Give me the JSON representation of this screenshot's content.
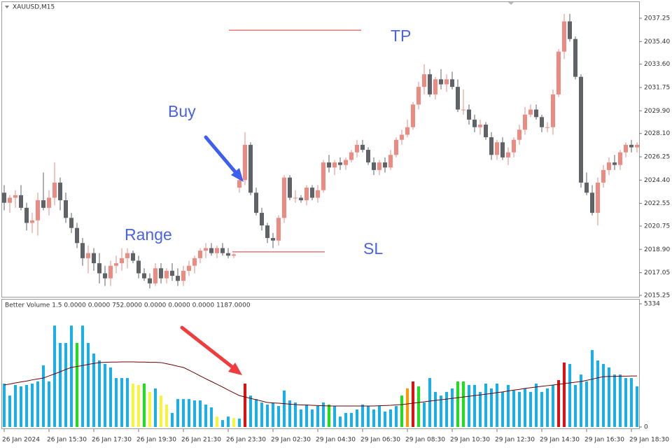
{
  "chart_data": [
    {
      "type": "candlestick",
      "title": "XAUUSD,M15",
      "ylim": [
        2015.08,
        2038.53
      ],
      "yticks": [
        2037.25,
        {
          "value": 2035.4,
          "label": "2035.40"
        },
        {
          "value": 2033.6,
          "label": "2033.60"
        },
        2031.75,
        {
          "value": 2029.9,
          "label": "2029.90"
        },
        {
          "value": 2028.1,
          "label": "2028.10"
        },
        2026.25,
        {
          "value": 2024.4,
          "label": "2024.40"
        },
        2022.55,
        2020.75,
        {
          "value": 2018.9,
          "label": "2018.90"
        },
        2017.05,
        2015.25
      ],
      "up_color": "#ee8a80",
      "down_color": "#5f6266",
      "open": [
        2023.4,
        2022.6,
        2023.0,
        2023.2,
        2022.2,
        2021.0,
        2021.2,
        2022.8,
        2022.2,
        2023.0,
        2024.2,
        2022.8,
        2021.4,
        2020.6,
        2019.4,
        2018.2,
        2018.6,
        2017.8,
        2017.0,
        2016.6,
        2017.6,
        2017.8,
        2018.2,
        2018.6,
        2018.0,
        2017.0,
        2016.6,
        2016.2,
        2017.4,
        2016.6,
        2017.2,
        2016.8,
        2016.4,
        2017.2,
        2017.6,
        2018.2,
        2018.8,
        2019.0,
        2018.6,
        2019.0,
        2018.6,
        2018.4,
        2023.8,
        2024.4,
        2027.2,
        2023.4,
        2021.8,
        2020.8,
        2019.8,
        2019.6,
        2021.4,
        2024.6,
        2023.0,
        2023.0,
        2022.8,
        2023.8,
        2023.0,
        2023.6,
        2025.8,
        2025.4,
        2025.8,
        2025.6,
        2026.0,
        2026.6,
        2027.2,
        2026.8,
        2025.8,
        2025.2,
        2025.8,
        2025.4,
        2026.4,
        2027.6,
        2028.0,
        2028.6,
        2030.4,
        2031.8,
        2032.8,
        2031.2,
        2032.4,
        2032.0,
        2032.4,
        2031.8,
        2030.0,
        2030.0,
        2029.2,
        2028.6,
        2028.8,
        2027.8,
        2026.4,
        2027.4,
        2026.2,
        2026.6,
        2027.6,
        2028.4,
        2029.6,
        2030.0,
        2029.4,
        2028.6,
        2028.6,
        2031.2,
        2034.6,
        2037.0,
        2035.6,
        2032.6,
        2024.2,
        2023.4,
        2021.8,
        2024.2,
        2025.2,
        2025.8,
        2025.6,
        2026.6,
        2027.2,
        2027.0
      ],
      "high": [
        2024.0,
        2023.2,
        2023.6,
        2024.0,
        2022.6,
        2021.8,
        2023.4,
        2025.0,
        2023.6,
        2025.8,
        2024.6,
        2023.4,
        2021.8,
        2021.0,
        2019.8,
        2019.2,
        2019.0,
        2018.6,
        2017.6,
        2018.0,
        2018.4,
        2019.0,
        2019.0,
        2018.8,
        2018.4,
        2017.4,
        2017.0,
        2017.8,
        2017.8,
        2017.4,
        2017.8,
        2017.4,
        2017.6,
        2018.0,
        2018.4,
        2019.0,
        2019.4,
        2019.4,
        2019.2,
        2019.4,
        2019.0,
        2018.6,
        2024.6,
        2028.2,
        2027.4,
        2023.8,
        2022.2,
        2021.0,
        2020.2,
        2021.6,
        2024.8,
        2024.8,
        2023.6,
        2023.2,
        2024.0,
        2024.0,
        2024.0,
        2026.0,
        2026.4,
        2026.0,
        2026.2,
        2026.2,
        2026.8,
        2027.6,
        2027.6,
        2027.0,
        2026.2,
        2026.0,
        2026.2,
        2026.8,
        2027.8,
        2028.4,
        2029.2,
        2030.6,
        2032.2,
        2033.6,
        2033.2,
        2032.6,
        2033.2,
        2032.8,
        2033.0,
        2032.4,
        2031.6,
        2030.4,
        2029.6,
        2029.2,
        2029.0,
        2028.2,
        2027.6,
        2027.8,
        2027.0,
        2027.8,
        2028.8,
        2030.2,
        2030.4,
        2030.4,
        2029.6,
        2029.0,
        2031.6,
        2034.8,
        2037.6,
        2037.6,
        2035.8,
        2032.8,
        2025.0,
        2024.0,
        2024.6,
        2025.6,
        2026.2,
        2026.4,
        2026.8,
        2027.4,
        2027.6,
        2027.4
      ],
      "low": [
        2022.0,
        2021.8,
        2022.2,
        2022.0,
        2020.4,
        2020.2,
        2020.0,
        2022.0,
        2021.6,
        2022.4,
        2022.0,
        2021.0,
        2020.2,
        2019.0,
        2017.6,
        2017.0,
        2017.2,
        2016.2,
        2016.0,
        2016.0,
        2017.0,
        2017.2,
        2017.4,
        2017.8,
        2016.6,
        2016.4,
        2015.8,
        2016.0,
        2016.2,
        2016.2,
        2016.4,
        2016.0,
        2016.0,
        2016.8,
        2017.0,
        2017.8,
        2018.2,
        2018.4,
        2018.2,
        2018.4,
        2018.2,
        2018.2,
        2023.4,
        2024.0,
        2023.2,
        2021.6,
        2020.4,
        2019.4,
        2019.0,
        2019.2,
        2021.0,
        2022.8,
        2022.6,
        2022.6,
        2022.4,
        2022.8,
        2022.6,
        2023.4,
        2025.0,
        2024.8,
        2025.2,
        2025.2,
        2025.8,
        2026.2,
        2026.6,
        2025.6,
        2024.8,
        2024.8,
        2025.0,
        2025.2,
        2026.2,
        2027.2,
        2027.8,
        2028.4,
        2030.0,
        2031.2,
        2031.0,
        2030.8,
        2031.6,
        2031.4,
        2031.6,
        2029.8,
        2029.6,
        2028.8,
        2028.2,
        2028.0,
        2027.6,
        2026.0,
        2026.0,
        2026.0,
        2025.6,
        2026.2,
        2027.2,
        2028.0,
        2029.4,
        2029.2,
        2028.2,
        2028.2,
        2028.0,
        2031.0,
        2034.0,
        2035.4,
        2032.4,
        2023.8,
        2023.2,
        2021.6,
        2020.8,
        2023.8,
        2024.8,
        2025.2,
        2025.2,
        2026.2,
        2026.6,
        2026.6
      ],
      "close": [
        2022.6,
        2023.0,
        2023.2,
        2022.2,
        2021.0,
        2021.2,
        2022.8,
        2022.2,
        2023.0,
        2024.2,
        2022.8,
        2021.4,
        2020.6,
        2019.4,
        2018.2,
        2018.6,
        2017.8,
        2017.0,
        2016.6,
        2017.6,
        2017.8,
        2018.2,
        2018.6,
        2018.0,
        2017.0,
        2016.6,
        2016.2,
        2017.4,
        2016.6,
        2017.2,
        2016.8,
        2016.4,
        2017.2,
        2017.6,
        2018.2,
        2018.8,
        2019.0,
        2018.6,
        2019.0,
        2018.6,
        2018.4,
        2018.5,
        2024.4,
        2027.2,
        2023.4,
        2021.8,
        2020.8,
        2019.8,
        2019.6,
        2021.4,
        2024.6,
        2023.0,
        2023.0,
        2022.8,
        2023.8,
        2023.0,
        2023.6,
        2025.8,
        2025.4,
        2025.8,
        2025.6,
        2026.0,
        2026.6,
        2027.2,
        2026.8,
        2025.8,
        2025.2,
        2025.8,
        2025.4,
        2026.4,
        2027.6,
        2028.0,
        2028.6,
        2030.4,
        2031.8,
        2032.8,
        2031.2,
        2032.4,
        2032.0,
        2032.4,
        2031.8,
        2030.0,
        2030.0,
        2029.2,
        2028.6,
        2028.8,
        2027.8,
        2026.4,
        2027.4,
        2026.2,
        2026.6,
        2027.6,
        2028.4,
        2029.6,
        2030.0,
        2029.4,
        2028.6,
        2028.6,
        2031.2,
        2034.6,
        2037.0,
        2035.6,
        2032.6,
        2024.2,
        2023.4,
        2021.8,
        2024.2,
        2025.2,
        2025.8,
        2025.6,
        2026.6,
        2027.2,
        2027.0,
        2027.2
      ],
      "tp": 2036.3,
      "sl": 2018.7,
      "annotations": [
        "Buy",
        "Range",
        "TP",
        "SL"
      ]
    },
    {
      "type": "bar",
      "title": "Better Volume 1.5 0.0000 0.0000 752.0000 0.0000 0.0000 0.0000 1187.0000",
      "ylim": [
        0,
        5334
      ],
      "yticks": [
        5334,
        0
      ],
      "categories": [
        "26 Jan 2024",
        null,
        null,
        null,
        null,
        null,
        null,
        null,
        "26 Jan 15:30",
        null,
        null,
        null,
        null,
        null,
        null,
        null,
        "26 Jan 17:30",
        null,
        null,
        null,
        null,
        null,
        null,
        null,
        "26 Jan 19:30",
        null,
        null,
        null,
        null,
        null,
        null,
        null,
        "26 Jan 21:30",
        null,
        null,
        null,
        null,
        null,
        null,
        null,
        "26 Jan 23:30",
        null,
        null,
        null,
        null,
        null,
        null,
        null,
        "29 Jan 02:30",
        null,
        null,
        null,
        null,
        null,
        null,
        null,
        "29 Jan 04:30",
        null,
        null,
        null,
        null,
        null,
        null,
        null,
        "29 Jan 06:30",
        null,
        null,
        null,
        null,
        null,
        null,
        null,
        "29 Jan 08:30",
        null,
        null,
        null,
        null,
        null,
        null,
        null,
        "29 Jan 10:30",
        null,
        null,
        null,
        null,
        null,
        null,
        null,
        "29 Jan 12:30",
        null,
        null,
        null,
        null,
        null,
        null,
        null,
        "29 Jan 14:30",
        null,
        null,
        null,
        null,
        null,
        null,
        null,
        "29 Jan 16:30",
        null,
        null,
        null,
        null,
        null,
        null,
        null,
        "29 Jan 18:30",
        null
      ],
      "values": [
        1880,
        1360,
        1820,
        1760,
        1820,
        1880,
        1970,
        2670,
        1970,
        4390,
        3640,
        3640,
        4390,
        3640,
        4390,
        3640,
        3180,
        2880,
        2730,
        2580,
        2120,
        2120,
        2120,
        1880,
        1820,
        1880,
        1520,
        1670,
        1360,
        970,
        610,
        1210,
        1210,
        1210,
        1150,
        1150,
        970,
        850,
        450,
        300,
        450,
        390,
        360,
        1880,
        1360,
        1210,
        1060,
        970,
        1060,
        910,
        1580,
        1150,
        1060,
        760,
        970,
        760,
        910,
        1060,
        970,
        910,
        450,
        610,
        610,
        760,
        970,
        910,
        760,
        910,
        670,
        760,
        910,
        1360,
        1670,
        1970,
        1760,
        1060,
        2120,
        1520,
        1360,
        1520,
        1670,
        1970,
        1970,
        1820,
        1820,
        1520,
        1880,
        1670,
        1880,
        1520,
        1820,
        1580,
        1520,
        1670,
        1520,
        1880,
        1520,
        1670,
        1820,
        2030,
        2790,
        2730,
        1820,
        2270,
        1970,
        3330,
        2880,
        2730,
        2580,
        2270,
        2270,
        2120,
        2120,
        1760
      ],
      "colors": [
        "#19b0e8",
        "#19b0e8",
        "#19b0e8",
        "#19b0e8",
        "#19b0e8",
        "#19b0e8",
        "#19b0e8",
        "#19b0e8",
        "#19b0e8",
        "#19b0e8",
        "#19b0e8",
        "#19b0e8",
        "#19b0e8",
        "#1de01d",
        "#19b0e8",
        "#19b0e8",
        "#19b0e8",
        "#19b0e8",
        "#19b0e8",
        "#19b0e8",
        "#19b0e8",
        "#19b0e8",
        "#19b0e8",
        "#f5f53a",
        "#f5f53a",
        "#1de01d",
        "#f5f53a",
        "#19b0e8",
        "#f5f53a",
        "#f5f53a",
        "#19b0e8",
        "#19b0e8",
        "#19b0e8",
        "#19b0e8",
        "#19b0e8",
        "#19b0e8",
        "#19b0e8",
        "#19b0e8",
        "#f5f53a",
        "#19b0e8",
        "#19b0e8",
        "#f5f53a",
        "#19b0e8",
        "#e01010",
        "#19b0e8",
        "#19b0e8",
        "#19b0e8",
        "#19b0e8",
        "#19b0e8",
        "#19b0e8",
        "#19b0e8",
        "#19b0e8",
        "#19b0e8",
        "#19b0e8",
        "#19b0e8",
        "#19b0e8",
        "#19b0e8",
        "#19b0e8",
        "#1de01d",
        "#19b0e8",
        "#19b0e8",
        "#19b0e8",
        "#19b0e8",
        "#19b0e8",
        "#19b0e8",
        "#19b0e8",
        "#19b0e8",
        "#19b0e8",
        "#19b0e8",
        "#19b0e8",
        "#19b0e8",
        "#1de01d",
        "#ff9900",
        "#e01010",
        "#1de01d",
        "#19b0e8",
        "#19b0e8",
        "#19b0e8",
        "#19b0e8",
        "#19b0e8",
        "#19b0e8",
        "#1de01d",
        "#1de01d",
        "#19b0e8",
        "#19b0e8",
        "#19b0e8",
        "#19b0e8",
        "#19b0e8",
        "#19b0e8",
        "#19b0e8",
        "#19b0e8",
        "#19b0e8",
        "#19b0e8",
        "#19b0e8",
        "#19b0e8",
        "#19b0e8",
        "#19b0e8",
        "#19b0e8",
        "#19b0e8",
        "#e01010",
        "#e01010",
        "#19b0e8",
        "#19b0e8",
        "#19b0e8",
        "#19b0e8",
        "#19b0e8",
        "#19b0e8",
        "#19b0e8",
        "#19b0e8",
        "#19b0e8",
        "#19b0e8",
        "#19b0e8",
        "#19b0e8",
        "#19b0e8"
      ],
      "ma_values": [
        1820,
        1860,
        1910,
        1950,
        1990,
        2040,
        2080,
        2120,
        2210,
        2300,
        2390,
        2490,
        2580,
        2620,
        2660,
        2710,
        2750,
        2790,
        2800,
        2810,
        2810,
        2820,
        2820,
        2820,
        2810,
        2810,
        2800,
        2800,
        2790,
        2740,
        2690,
        2630,
        2580,
        2460,
        2340,
        2210,
        2090,
        1970,
        1850,
        1730,
        1600,
        1480,
        1360,
        1300,
        1240,
        1180,
        1120,
        1060,
        1040,
        1030,
        1010,
        990,
        970,
        960,
        950,
        940,
        930,
        920,
        910,
        910,
        910,
        910,
        910,
        910,
        910,
        910,
        910,
        920,
        930,
        940,
        960,
        970,
        1000,
        1030,
        1060,
        1090,
        1120,
        1150,
        1180,
        1210,
        1240,
        1270,
        1300,
        1330,
        1360,
        1390,
        1420,
        1450,
        1490,
        1520,
        1560,
        1600,
        1630,
        1670,
        1700,
        1730,
        1760,
        1790,
        1820,
        1850,
        1880,
        1910,
        1940,
        1970,
        2020,
        2070,
        2130,
        2180,
        2190,
        2190,
        2200,
        2200,
        2210,
        2210
      ],
      "ma_color": "#6b0000"
    }
  ]
}
